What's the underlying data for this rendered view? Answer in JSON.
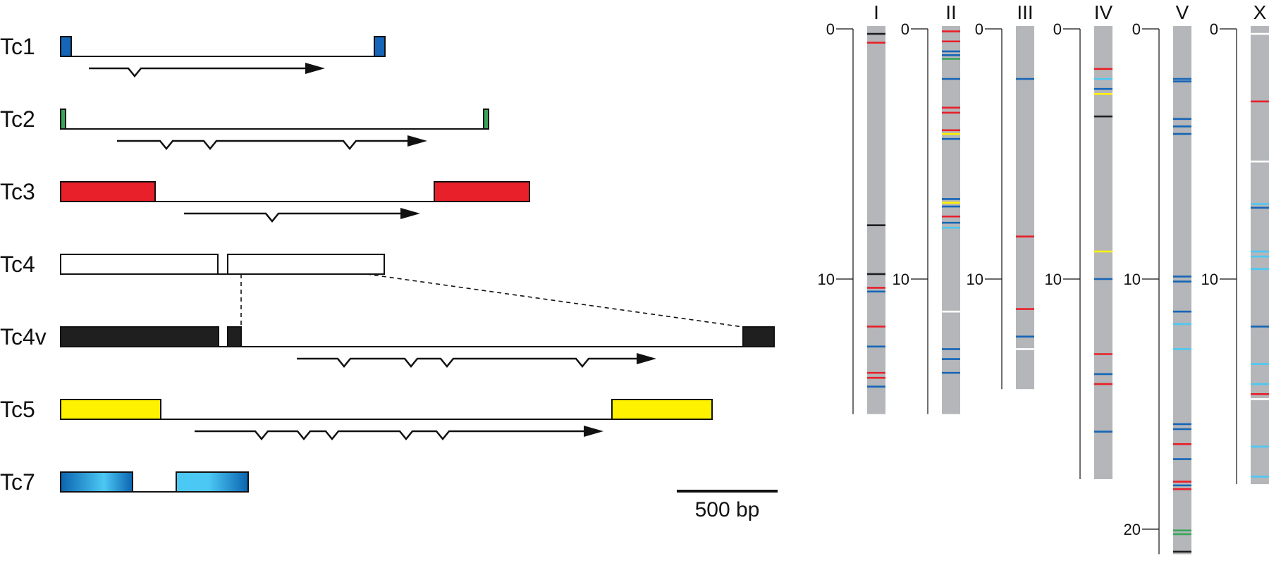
{
  "colors": {
    "tc1": "#1565b8",
    "tc2": "#3aa55a",
    "tc3": "#e8202a",
    "tc4": "#ffffff",
    "tc4v": "#1f1f1f",
    "tc5": "#fff200",
    "tc7_dark": "#0b64b0",
    "tc7_light": "#4cc8f4",
    "chromosome": "#b4b6b9"
  },
  "transposons": [
    {
      "label": "Tc1",
      "color_key": "tc1",
      "exons": [
        [
          0,
          15
        ],
        [
          445,
          460
        ]
      ],
      "arrow": {
        "start": 40,
        "end": 375,
        "notches": [
          105
        ]
      }
    },
    {
      "label": "Tc2",
      "color_key": "tc2",
      "exons": [
        [
          0,
          7
        ],
        [
          600,
          607
        ]
      ],
      "arrow": {
        "start": 80,
        "end": 520,
        "notches": [
          150,
          212,
          410
        ]
      }
    },
    {
      "label": "Tc3",
      "color_key": "tc3",
      "exons": [
        [
          0,
          134
        ],
        [
          530,
          665
        ]
      ],
      "arrow": {
        "start": 175,
        "end": 510,
        "notches": [
          300
        ]
      }
    },
    {
      "label": "Tc4",
      "color_key": "tc4",
      "exons": [
        [
          0,
          223
        ],
        [
          237,
          459
        ]
      ],
      "arrow": null
    },
    {
      "label": "Tc4v",
      "color_key": "tc4v",
      "exons": [
        [
          0,
          224
        ],
        [
          237,
          256
        ],
        [
          968,
          1012
        ]
      ],
      "arrow": {
        "start": 335,
        "end": 845,
        "notches": [
          402,
          497,
          548,
          740
        ]
      }
    },
    {
      "label": "Tc5",
      "color_key": "tc5",
      "exons": [
        [
          0,
          142
        ],
        [
          782,
          924
        ]
      ],
      "arrow": {
        "start": 190,
        "end": 770,
        "notches": [
          285,
          345,
          385,
          490,
          542
        ]
      }
    },
    {
      "label": "Tc7",
      "color_key": "tc7",
      "exons": [
        [
          0,
          102
        ],
        [
          164,
          266
        ]
      ],
      "arrow": null
    }
  ],
  "scale_bar": {
    "label": "500 bp",
    "bp": 500
  },
  "chromosomes": [
    {
      "name": "I",
      "length": 15.4,
      "ticks": [
        0,
        10
      ],
      "marks": [
        {
          "pos": 0.2,
          "color": "#1f1f1f"
        },
        {
          "pos": 0.55,
          "color": "#e8202a"
        },
        {
          "pos": 7.85,
          "color": "#1f1f1f"
        },
        {
          "pos": 9.8,
          "color": "#1f1f1f"
        },
        {
          "pos": 10.35,
          "color": "#e8202a"
        },
        {
          "pos": 10.5,
          "color": "#1565b8"
        },
        {
          "pos": 11.9,
          "color": "#e8202a"
        },
        {
          "pos": 12.7,
          "color": "#1565b8"
        },
        {
          "pos": 13.75,
          "color": "#e8202a"
        },
        {
          "pos": 13.95,
          "color": "#e8202a"
        },
        {
          "pos": 14.3,
          "color": "#1565b8"
        }
      ]
    },
    {
      "name": "II",
      "length": 15.4,
      "ticks": [
        0,
        10
      ],
      "marks": [
        {
          "pos": 0.1,
          "color": "#e8202a"
        },
        {
          "pos": 0.5,
          "color": "#e8202a"
        },
        {
          "pos": 0.9,
          "color": "#1565b8"
        },
        {
          "pos": 1.05,
          "color": "#1565b8"
        },
        {
          "pos": 1.2,
          "color": "#3aa55a"
        },
        {
          "pos": 2.0,
          "color": "#1565b8"
        },
        {
          "pos": 3.15,
          "color": "#e8202a"
        },
        {
          "pos": 3.35,
          "color": "#e8202a"
        },
        {
          "pos": 4.05,
          "color": "#e8202a"
        },
        {
          "pos": 4.2,
          "color": "#fff200"
        },
        {
          "pos": 4.4,
          "color": "#1565b8"
        },
        {
          "pos": 6.8,
          "color": "#1565b8"
        },
        {
          "pos": 6.95,
          "color": "#fff200"
        },
        {
          "pos": 7.1,
          "color": "#1565b8"
        },
        {
          "pos": 7.5,
          "color": "#e8202a"
        },
        {
          "pos": 7.75,
          "color": "#1565b8"
        },
        {
          "pos": 7.95,
          "color": "#4cc8f4"
        },
        {
          "pos": 11.3,
          "color": "#ffffff"
        },
        {
          "pos": 12.8,
          "color": "#1565b8"
        },
        {
          "pos": 13.2,
          "color": "#1565b8"
        },
        {
          "pos": 13.75,
          "color": "#1565b8"
        }
      ]
    },
    {
      "name": "III",
      "length": 14.4,
      "ticks": [
        0,
        10
      ],
      "marks": [
        {
          "pos": 2.0,
          "color": "#1565b8"
        },
        {
          "pos": 8.3,
          "color": "#e8202a"
        },
        {
          "pos": 11.2,
          "color": "#e8202a"
        },
        {
          "pos": 12.3,
          "color": "#1565b8"
        },
        {
          "pos": 12.8,
          "color": "#ffffff"
        }
      ]
    },
    {
      "name": "IV",
      "length": 18.0,
      "ticks": [
        0,
        10
      ],
      "marks": [
        {
          "pos": 1.6,
          "color": "#e8202a"
        },
        {
          "pos": 2.0,
          "color": "#4cc8f4"
        },
        {
          "pos": 2.4,
          "color": "#1565b8"
        },
        {
          "pos": 2.6,
          "color": "#fff200"
        },
        {
          "pos": 3.5,
          "color": "#1f1f1f"
        },
        {
          "pos": 8.9,
          "color": "#fff200"
        },
        {
          "pos": 10.0,
          "color": "#1565b8"
        },
        {
          "pos": 13.0,
          "color": "#e8202a"
        },
        {
          "pos": 13.8,
          "color": "#1565b8"
        },
        {
          "pos": 14.2,
          "color": "#e8202a"
        },
        {
          "pos": 16.1,
          "color": "#1565b8"
        }
      ]
    },
    {
      "name": "V",
      "length": 21.0,
      "ticks": [
        0,
        10,
        20
      ],
      "marks": [
        {
          "pos": 2.0,
          "color": "#1565b8"
        },
        {
          "pos": 2.1,
          "color": "#1565b8"
        },
        {
          "pos": 3.6,
          "color": "#1565b8"
        },
        {
          "pos": 3.9,
          "color": "#1565b8"
        },
        {
          "pos": 4.2,
          "color": "#1565b8"
        },
        {
          "pos": 9.9,
          "color": "#1565b8"
        },
        {
          "pos": 10.1,
          "color": "#1565b8"
        },
        {
          "pos": 11.3,
          "color": "#1565b8"
        },
        {
          "pos": 11.8,
          "color": "#4cc8f4"
        },
        {
          "pos": 12.8,
          "color": "#4cc8f4"
        },
        {
          "pos": 15.8,
          "color": "#1565b8"
        },
        {
          "pos": 16.0,
          "color": "#1565b8"
        },
        {
          "pos": 16.6,
          "color": "#e8202a"
        },
        {
          "pos": 17.2,
          "color": "#1565b8"
        },
        {
          "pos": 18.1,
          "color": "#e8202a"
        },
        {
          "pos": 18.25,
          "color": "#1565b8"
        },
        {
          "pos": 18.4,
          "color": "#e8202a"
        },
        {
          "pos": 20.05,
          "color": "#3aa55a"
        },
        {
          "pos": 20.2,
          "color": "#3aa55a"
        },
        {
          "pos": 20.9,
          "color": "#1f1f1f"
        }
      ]
    },
    {
      "name": "X",
      "length": 18.2,
      "ticks": [
        0,
        10
      ],
      "marks": [
        {
          "pos": 0.2,
          "color": "#ffffff"
        },
        {
          "pos": 2.9,
          "color": "#e8202a"
        },
        {
          "pos": 5.3,
          "color": "#ffffff"
        },
        {
          "pos": 7.0,
          "color": "#4cc8f4"
        },
        {
          "pos": 7.15,
          "color": "#1565b8"
        },
        {
          "pos": 8.9,
          "color": "#4cc8f4"
        },
        {
          "pos": 9.1,
          "color": "#4cc8f4"
        },
        {
          "pos": 9.6,
          "color": "#4cc8f4"
        },
        {
          "pos": 11.9,
          "color": "#1565b8"
        },
        {
          "pos": 13.4,
          "color": "#4cc8f4"
        },
        {
          "pos": 14.2,
          "color": "#4cc8f4"
        },
        {
          "pos": 14.6,
          "color": "#e8202a"
        },
        {
          "pos": 14.8,
          "color": "#ffffff"
        },
        {
          "pos": 16.7,
          "color": "#4cc8f4"
        },
        {
          "pos": 17.9,
          "color": "#4cc8f4"
        }
      ]
    }
  ]
}
